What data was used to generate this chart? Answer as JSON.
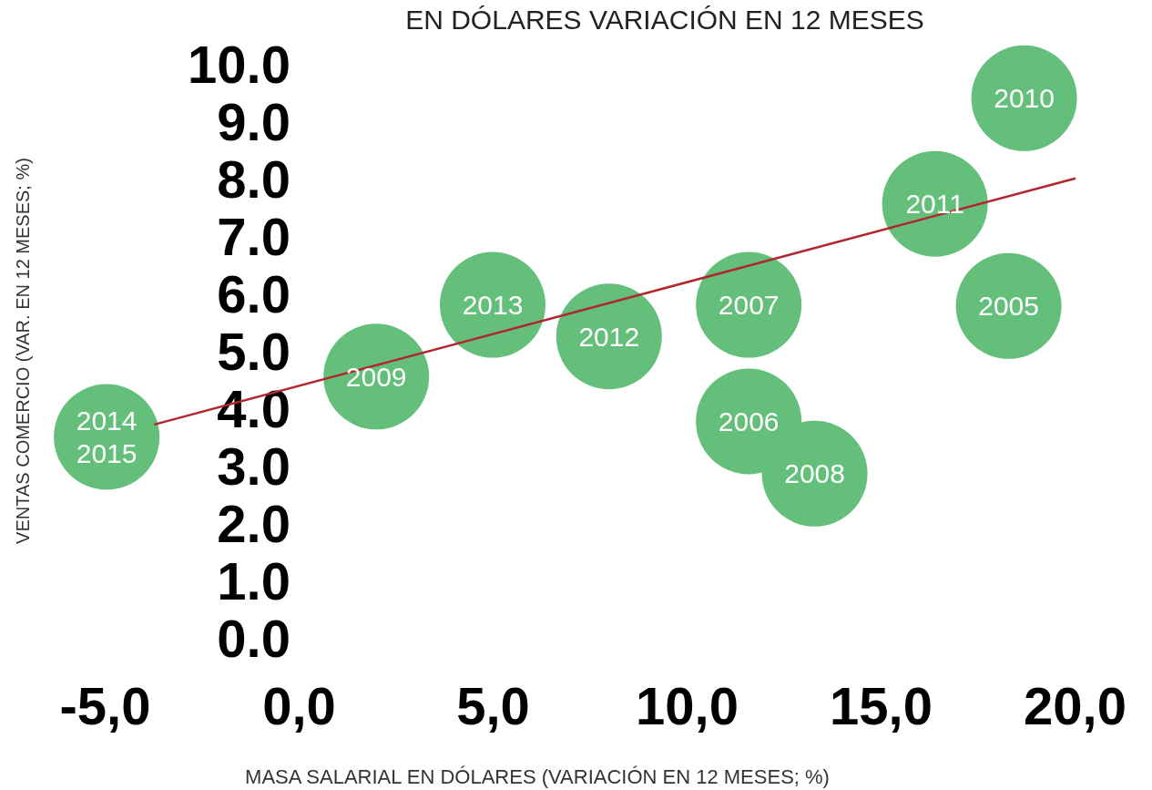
{
  "chart_data": {
    "type": "scatter",
    "title": "EN DÓLARES VARIACIÓN EN 12 MESES",
    "xlabel": "MASA SALARIAL EN DÓLARES (VARIACIÓN EN 12 MESES; %)",
    "ylabel": "VENTAS COMERCIO (VAR. EN 12 MESES; %)",
    "x": [
      -4.95,
      2.0,
      5.0,
      8.0,
      11.6,
      11.6,
      13.3,
      16.4,
      18.3,
      18.7
    ],
    "series": [
      {
        "color": "#63bf7a",
        "marker": "circle",
        "values": [
          3.5,
          4.55,
          5.8,
          5.25,
          5.8,
          3.77,
          2.86,
          7.56,
          5.78,
          9.4
        ]
      },
      {
        "type": "line",
        "color": "#b0282d",
        "x": [
          -3.7,
          20
        ],
        "values": [
          3.72,
          8.0
        ]
      }
    ],
    "annotations": [
      {
        "text": "2014\n2015",
        "x": -4.95,
        "y": 3.5
      },
      {
        "text": "2009",
        "x": 2.0,
        "y": 4.55
      },
      {
        "text": "2013",
        "x": 5.0,
        "y": 5.8
      },
      {
        "text": "2012",
        "x": 8.0,
        "y": 5.25
      },
      {
        "text": "2007",
        "x": 11.6,
        "y": 5.8
      },
      {
        "text": "2006",
        "x": 11.6,
        "y": 3.77
      },
      {
        "text": "2008",
        "x": 13.3,
        "y": 2.86
      },
      {
        "text": "2011",
        "x": 16.4,
        "y": 7.56
      },
      {
        "text": "2005",
        "x": 18.3,
        "y": 5.78
      },
      {
        "text": "2010",
        "x": 18.7,
        "y": 9.4
      }
    ],
    "xlim": [
      -5,
      20
    ],
    "xticks": [
      {
        "value": -5,
        "label": "-5,0"
      },
      {
        "value": 0,
        "label": "0,0"
      },
      {
        "value": 5,
        "label": "5,0"
      },
      {
        "value": 10,
        "label": "10,0"
      },
      {
        "value": 15,
        "label": "15,0"
      },
      {
        "value": 20,
        "label": "20,0"
      }
    ],
    "ylim": [
      0,
      10
    ],
    "yticks": [
      {
        "value": 0,
        "label": "0.0"
      },
      {
        "value": 1,
        "label": "1.0"
      },
      {
        "value": 2,
        "label": "2.0"
      },
      {
        "value": 3,
        "label": "3.0"
      },
      {
        "value": 4,
        "label": "4.0"
      },
      {
        "value": 5,
        "label": "5.0"
      },
      {
        "value": 6,
        "label": "6.0"
      },
      {
        "value": 7,
        "label": "7.0"
      },
      {
        "value": 8,
        "label": "8.0"
      },
      {
        "value": 9,
        "label": "9.0"
      },
      {
        "value": 10,
        "label": "10.0"
      }
    ],
    "grid": false
  }
}
